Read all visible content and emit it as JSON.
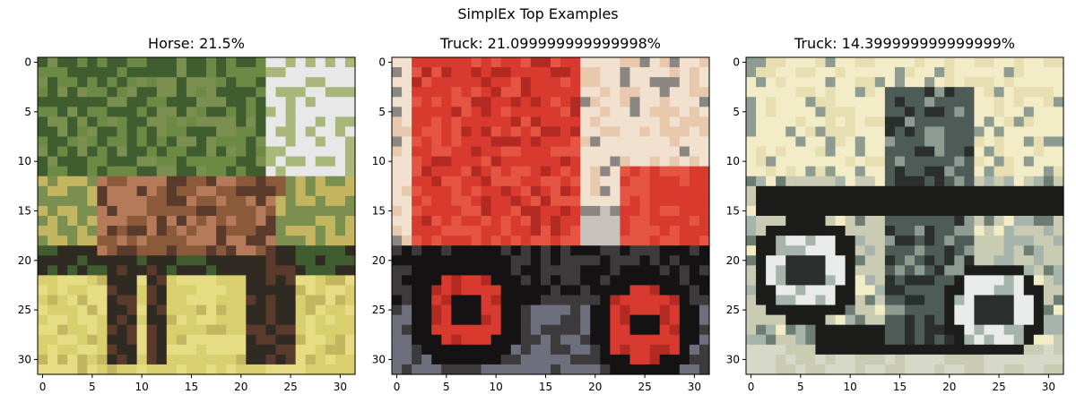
{
  "suptitle": "SimplEx Top Examples",
  "chart_data": [
    {
      "type": "image",
      "title": "Horse: 21.5%",
      "xticks": [
        "0",
        "5",
        "10",
        "15",
        "20",
        "25",
        "30"
      ],
      "yticks": [
        "0",
        "5",
        "10",
        "15",
        "20",
        "25",
        "30"
      ],
      "xlim": [
        -0.5,
        31.5
      ],
      "ylim": [
        31.5,
        -0.5
      ],
      "palette": [
        "#3f5d2f",
        "#6d8a45",
        "#a9b87a",
        "#e9e8e8",
        "#8b5a3b",
        "#b57a5a",
        "#5a3a2a",
        "#2f2a22",
        "#d9cf6f",
        "#e6dc84",
        "#c4b560",
        "#7a8f50"
      ]
    },
    {
      "type": "image",
      "title": "Truck: 21.099999999999998%",
      "xticks": [
        "0",
        "5",
        "10",
        "15",
        "20",
        "25",
        "30"
      ],
      "yticks": [
        "0",
        "5",
        "10",
        "15",
        "20",
        "25",
        "30"
      ],
      "xlim": [
        -0.5,
        31.5
      ],
      "ylim": [
        31.5,
        -0.5
      ],
      "palette": [
        "#d93a2f",
        "#b32a22",
        "#e65443",
        "#f2e1cf",
        "#e8c9ad",
        "#8b8682",
        "#3c3a3a",
        "#141212",
        "#5a1410",
        "#c8c2bd",
        "#6d6f7d"
      ]
    },
    {
      "type": "image",
      "title": "Truck: 14.399999999999999%",
      "xticks": [
        "0",
        "5",
        "10",
        "15",
        "20",
        "25",
        "30"
      ],
      "yticks": [
        "0",
        "5",
        "10",
        "15",
        "20",
        "25",
        "30"
      ],
      "xlim": [
        -0.5,
        31.5
      ],
      "ylim": [
        31.5,
        -0.5
      ],
      "palette": [
        "#f2ecc7",
        "#e7dfb2",
        "#c9cbb3",
        "#8e9b90",
        "#4f5b56",
        "#2a2f2d",
        "#1c1d1b",
        "#e9ecea",
        "#a6b4ac",
        "#6d7d72",
        "#d6d9c8"
      ]
    }
  ]
}
